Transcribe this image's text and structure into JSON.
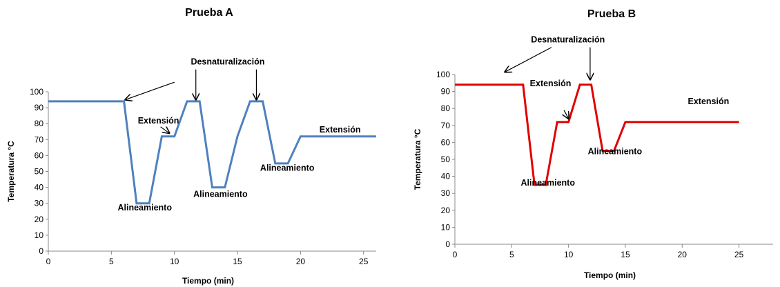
{
  "chart_data": [
    {
      "type": "line",
      "title": "Prueba A",
      "xlabel": "Tiempo (min)",
      "ylabel": "Temperatura °C",
      "xlim": [
        0,
        26
      ],
      "ylim": [
        0,
        100
      ],
      "xticks": [
        0,
        5,
        10,
        15,
        20,
        25
      ],
      "yticks": [
        0,
        10,
        20,
        30,
        40,
        50,
        60,
        70,
        80,
        90,
        100
      ],
      "grid": false,
      "color": "#4F81BD",
      "series": [
        {
          "x": [
            0,
            6,
            7,
            8,
            9,
            10,
            11,
            12,
            13,
            14,
            15,
            16,
            17,
            18,
            19,
            20,
            26
          ],
          "y": [
            94,
            94,
            30,
            30,
            72,
            72,
            94,
            94,
            40,
            40,
            72,
            94,
            94,
            55,
            55,
            72,
            72
          ]
        }
      ],
      "annotations": [
        {
          "text": "Desnaturalización",
          "x": 11.3,
          "y": 117
        },
        {
          "text": "Extensión",
          "x": 7.1,
          "y": 80
        },
        {
          "text": "Alineamiento",
          "x": 5.5,
          "y": 25.5
        },
        {
          "text": "Alineamiento",
          "x": 11.5,
          "y": 34
        },
        {
          "text": "Alineamiento",
          "x": 16.8,
          "y": 50.5
        },
        {
          "text": "Extensión",
          "x": 21.5,
          "y": 74.5
        }
      ],
      "arrows": [
        {
          "from": [
            10,
            106
          ],
          "to": [
            6.1,
            95
          ]
        },
        {
          "from": [
            11.7,
            114
          ],
          "to": [
            11.7,
            95
          ]
        },
        {
          "from": [
            16.5,
            114
          ],
          "to": [
            16.5,
            95
          ]
        },
        {
          "from": [
            8.9,
            78
          ],
          "to": [
            9.6,
            74
          ]
        }
      ]
    },
    {
      "type": "line",
      "title": "Prueba B",
      "xlabel": "Tiempo (min)",
      "ylabel": "Temperatura °C",
      "xlim": [
        0,
        28
      ],
      "ylim": [
        0,
        100
      ],
      "xticks": [
        0,
        5,
        10,
        15,
        20,
        25
      ],
      "yticks": [
        0,
        10,
        20,
        30,
        40,
        50,
        60,
        70,
        80,
        90,
        100
      ],
      "grid": false,
      "color": "#E00000",
      "series": [
        {
          "x": [
            0,
            6,
            7,
            8,
            9,
            10,
            11,
            12,
            13,
            14,
            15,
            25
          ],
          "y": [
            94,
            94,
            35,
            35,
            72,
            72,
            94,
            94,
            55,
            55,
            72,
            72
          ]
        }
      ],
      "annotations": [
        {
          "text": "Desnaturalización",
          "x": 6.7,
          "y": 119
        },
        {
          "text": "Extensión",
          "x": 6.6,
          "y": 93
        },
        {
          "text": "Alineamiento",
          "x": 5.8,
          "y": 34.5
        },
        {
          "text": "Alineamiento",
          "x": 11.7,
          "y": 53
        },
        {
          "text": "Extensión",
          "x": 20.5,
          "y": 82.5
        }
      ],
      "arrows": [
        {
          "from": [
            8.5,
            116
          ],
          "to": [
            4.4,
            101.5
          ]
        },
        {
          "from": [
            11.9,
            116
          ],
          "to": [
            11.9,
            97
          ]
        },
        {
          "from": [
            9.6,
            79
          ],
          "to": [
            10,
            74
          ]
        }
      ]
    }
  ]
}
